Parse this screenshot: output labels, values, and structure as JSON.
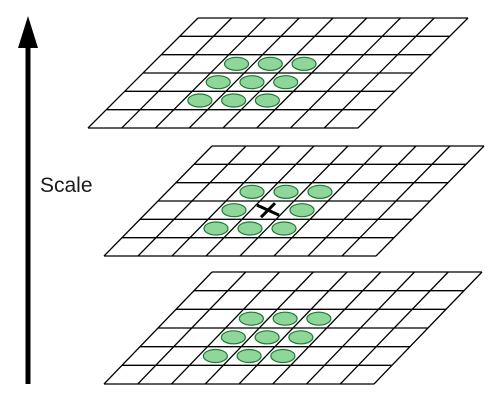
{
  "scale_axis": {
    "label": "Scale"
  },
  "colors": {
    "grid_stroke": "#000000",
    "blob_fill": "#8fd69a",
    "blob_stroke": "#1f7a35",
    "marker": "#000000",
    "arrow": "#000000"
  },
  "layers": [
    {
      "name": "upper-scale-grid",
      "cols": 8,
      "rows": 6,
      "has_center_marker": false
    },
    {
      "name": "middle-scale-grid",
      "cols": 8,
      "rows": 6,
      "has_center_marker": true
    },
    {
      "name": "lower-scale-grid",
      "cols": 8,
      "rows": 6,
      "has_center_marker": false
    }
  ]
}
